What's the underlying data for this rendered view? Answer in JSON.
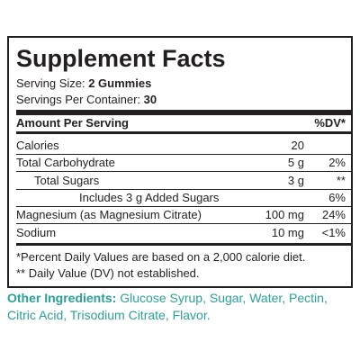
{
  "label": {
    "title": "Supplement Facts",
    "serving_size_label": "Serving Size:",
    "serving_size": "2 Gummies",
    "servings_label": "Servings Per Container:",
    "servings": "30",
    "header_amount": "Amount Per Serving",
    "header_dv": "%DV*",
    "rows": [
      {
        "name": "Calories",
        "amount": "20",
        "indent": 0
      },
      {
        "name": "Total Carbohydrate",
        "amount": "5 g",
        "dv": "2%",
        "indent": 0
      },
      {
        "name": "Total Sugars",
        "amount": "3 g",
        "dv": "**",
        "indent": 1
      },
      {
        "name": "Includes 3 g Added Sugars",
        "dv": "6%",
        "indent": 2
      },
      {
        "name": "Magnesium (as Magnesium Citrate)",
        "amount": "100 mg",
        "dv": "24%",
        "indent": 0
      },
      {
        "name": "Sodium",
        "amount": "10 mg",
        "dv": "<1%",
        "indent": 0
      }
    ],
    "footnotes": [
      "*Percent Daily Values are based on a 2,000 calorie diet.",
      "** Daily Value (DV) not established."
    ]
  },
  "other_ingredients": {
    "label": "Other Ingredients:",
    "text": "Glucose Syrup, Sugar, Water, Pectin, Citric Acid, Trisodium Citrate, Flavor."
  }
}
